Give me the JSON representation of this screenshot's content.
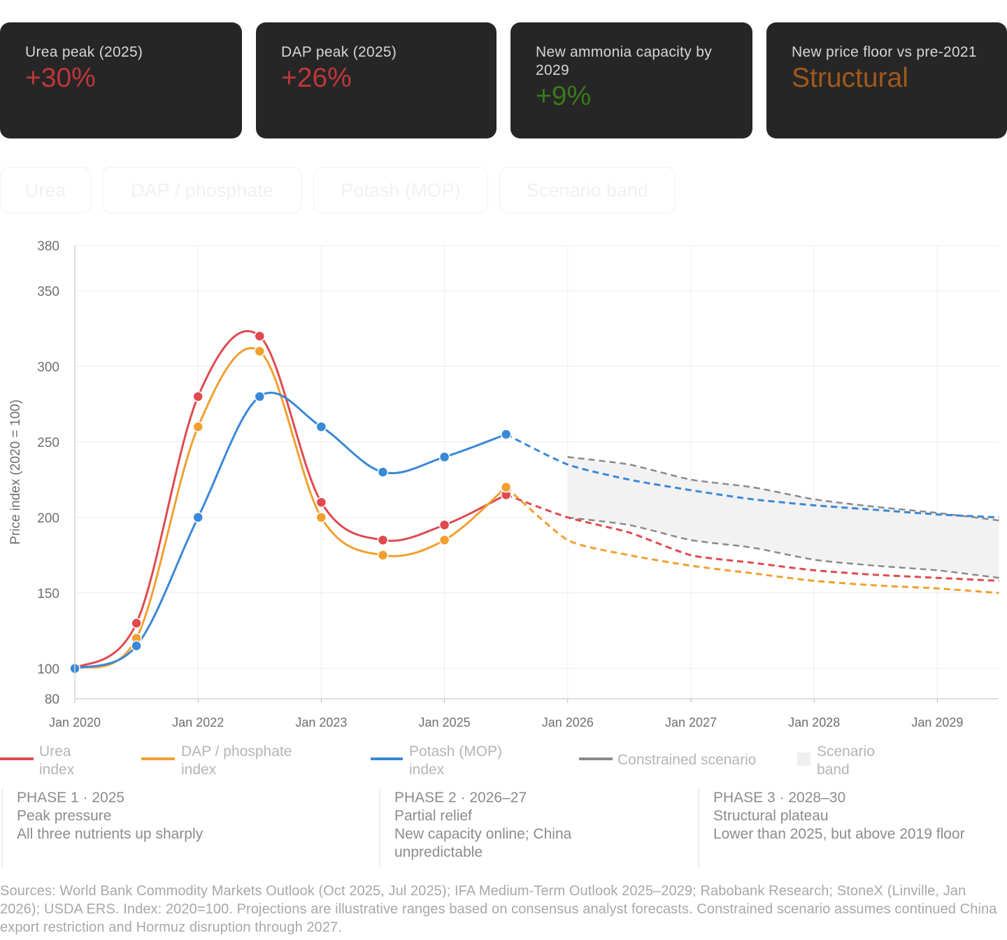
{
  "stats": [
    {
      "label": "Urea peak (2025)",
      "value": "+30%",
      "color": "#c0363a"
    },
    {
      "label": "DAP peak (2025)",
      "value": "+26%",
      "color": "#c0363a"
    },
    {
      "label": "New ammonia capacity by 2029",
      "value": "+9%",
      "color": "#3a7a1a"
    },
    {
      "label": "New price floor vs pre-2021",
      "value": "Structural",
      "color": "#a2581a"
    }
  ],
  "toggles": [
    "Urea",
    "DAP / phosphate",
    "Potash (MOP)",
    "Scenario band"
  ],
  "legend": [
    {
      "label": "Urea index",
      "color": "#e04a4f",
      "kind": "line"
    },
    {
      "label": "DAP / phosphate index",
      "color": "#f0a030",
      "kind": "line"
    },
    {
      "label": "Potash (MOP) index",
      "color": "#3a88d8",
      "kind": "line"
    },
    {
      "label": "Constrained scenario",
      "color": "#8a8a8a",
      "kind": "line"
    },
    {
      "label": "Scenario band",
      "color": "#efefef",
      "kind": "box"
    }
  ],
  "phases": [
    {
      "title": "PHASE 1 · 2025",
      "subtitle": "Peak pressure",
      "detail": "All three nutrients up sharply"
    },
    {
      "title": "PHASE 2 · 2026–27",
      "subtitle": "Partial relief",
      "detail": "New capacity online; China unpredictable"
    },
    {
      "title": "PHASE 3 · 2028–30",
      "subtitle": "Structural plateau",
      "detail": "Lower than 2025, but above 2019 floor"
    }
  ],
  "sources": "Sources: World Bank Commodity Markets Outlook (Oct 2025, Jul 2025); IFA Medium-Term Outlook 2025–2029; Rabobank Research; StoneX (Linville, Jan 2026); USDA ERS. Index: 2020=100. Projections are illustrative ranges based on consensus analyst forecasts. Constrained scenario assumes continued China export restriction and Hormuz disruption through 2027.",
  "chart_data": {
    "type": "line",
    "ylabel": "Price index (2020 = 100)",
    "ylim": [
      80,
      380
    ],
    "yticks": [
      80,
      100,
      150,
      200,
      250,
      300,
      350,
      380
    ],
    "xlim": [
      0,
      15
    ],
    "xticks": [
      {
        "x": 0,
        "label": "Jan 2020"
      },
      {
        "x": 2,
        "label": "Jan 2022"
      },
      {
        "x": 4,
        "label": "Jan 2023"
      },
      {
        "x": 6,
        "label": "Jan 2025"
      },
      {
        "x": 8,
        "label": "Jan 2026"
      },
      {
        "x": 10,
        "label": "Jan 2027"
      },
      {
        "x": 12,
        "label": "Jan 2028"
      },
      {
        "x": 14,
        "label": "Jan 2029"
      }
    ],
    "series": [
      {
        "name": "Urea index",
        "color": "#e04a4f",
        "actual": {
          "x": [
            0,
            1,
            2,
            3,
            4,
            5,
            6,
            7
          ],
          "y": [
            100,
            130,
            280,
            320,
            210,
            185,
            195,
            215
          ]
        },
        "projection": {
          "x": [
            7,
            8,
            9,
            10,
            11,
            12,
            13,
            14,
            15
          ],
          "y": [
            215,
            200,
            190,
            175,
            170,
            165,
            162,
            160,
            158
          ]
        }
      },
      {
        "name": "DAP / phosphate index",
        "color": "#f0a030",
        "actual": {
          "x": [
            0,
            1,
            2,
            3,
            4,
            5,
            6,
            7
          ],
          "y": [
            100,
            120,
            260,
            310,
            200,
            175,
            185,
            220
          ]
        },
        "projection": {
          "x": [
            7,
            8,
            9,
            10,
            11,
            12,
            13,
            14,
            15
          ],
          "y": [
            220,
            185,
            175,
            168,
            163,
            158,
            155,
            153,
            150
          ]
        }
      },
      {
        "name": "Potash (MOP) index",
        "color": "#3a88d8",
        "actual": {
          "x": [
            0,
            1,
            2,
            3,
            4,
            5,
            6,
            7
          ],
          "y": [
            100,
            115,
            200,
            280,
            260,
            230,
            240,
            255
          ]
        },
        "projection": {
          "x": [
            7,
            8,
            9,
            10,
            11,
            12,
            13,
            14,
            15
          ],
          "y": [
            255,
            235,
            225,
            218,
            212,
            208,
            205,
            202,
            200
          ]
        }
      }
    ],
    "constrained_scenario": {
      "upper": {
        "x": [
          8,
          9,
          10,
          11,
          12,
          13,
          14,
          15
        ],
        "y": [
          240,
          235,
          225,
          220,
          212,
          207,
          203,
          198
        ]
      },
      "lower": {
        "x": [
          8,
          9,
          10,
          11,
          12,
          13,
          14,
          15
        ],
        "y": [
          200,
          195,
          185,
          180,
          172,
          168,
          165,
          160
        ]
      }
    }
  }
}
